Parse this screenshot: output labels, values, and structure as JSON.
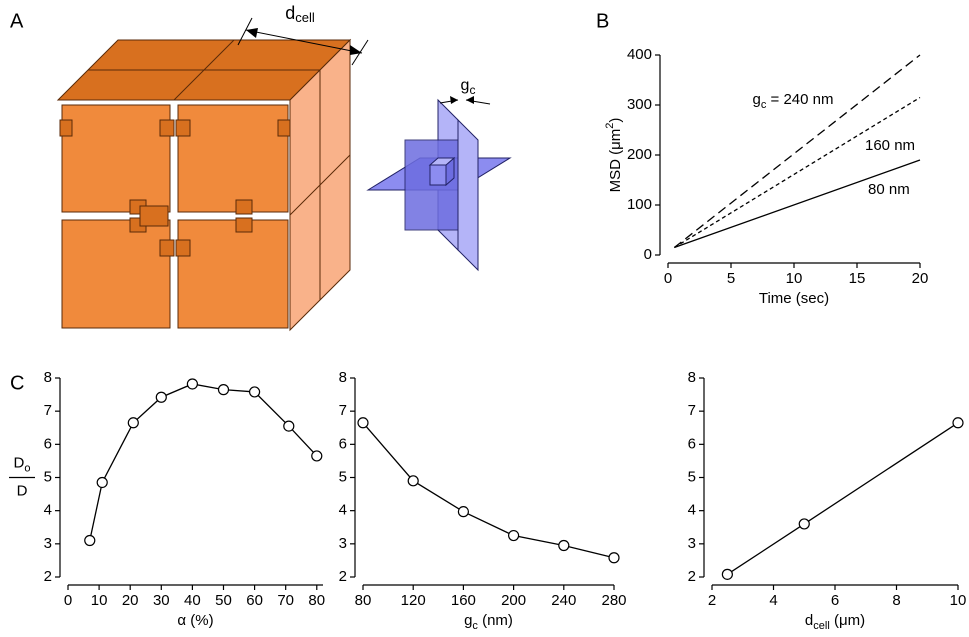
{
  "panel_labels": [
    "A",
    "B",
    "C"
  ],
  "diagram": {
    "cell_label": {
      "text": "d",
      "sub": "cell"
    },
    "gap_label": {
      "text": "g",
      "sub": "c"
    }
  },
  "chart_data": [
    {
      "type": "line",
      "x": [
        0.5,
        20
      ],
      "xlim": [
        0,
        20
      ],
      "xticks": [
        0,
        5,
        10,
        15,
        20
      ],
      "ylim": [
        0,
        400
      ],
      "yticks": [
        0,
        100,
        200,
        300,
        400
      ],
      "xlabel": {
        "text": "Time (sec)"
      },
      "ylabel": {
        "text": "MSD (μm",
        "sup": "2",
        "end": ")"
      },
      "label_prefix": {
        "text": "g",
        "sub": "c",
        "end": " = "
      },
      "series": [
        {
          "name": "240 nm",
          "color": "#000000",
          "dash": "9 5",
          "values": [
            15,
            400
          ]
        },
        {
          "name": "160 nm",
          "color": "#000000",
          "dash": "4 3",
          "values": [
            15,
            315
          ]
        },
        {
          "name": "80 nm",
          "color": "#000000",
          "dash": "none",
          "values": [
            15,
            190
          ]
        }
      ]
    },
    {
      "type": "line",
      "markers": true,
      "x": [
        7,
        11,
        21,
        30,
        40,
        50,
        60,
        71,
        80
      ],
      "values": [
        3.1,
        4.85,
        6.65,
        7.42,
        7.82,
        7.65,
        7.58,
        6.55,
        5.65
      ],
      "color": "#000000",
      "xlim": [
        0,
        82
      ],
      "xticks": [
        0,
        10,
        20,
        30,
        40,
        50,
        60,
        70,
        80
      ],
      "ylim": [
        2,
        8
      ],
      "yticks": [
        2,
        3,
        4,
        5,
        6,
        7,
        8
      ],
      "xlabel": {
        "text": "α (%)"
      },
      "ylabel": {
        "text": "D",
        "sub": "o",
        "denominator": "D"
      }
    },
    {
      "type": "line",
      "markers": true,
      "x": [
        80,
        120,
        160,
        200,
        240,
        280
      ],
      "values": [
        6.65,
        4.9,
        3.97,
        3.25,
        2.95,
        2.58
      ],
      "color": "#000000",
      "xlim": [
        80,
        280
      ],
      "xticks": [
        80,
        120,
        160,
        200,
        240,
        280
      ],
      "ylim": [
        2,
        8
      ],
      "yticks": [
        2,
        3,
        4,
        5,
        6,
        7,
        8
      ],
      "xlabel": {
        "text": "g",
        "sub": "c",
        "end": " (nm)"
      }
    },
    {
      "type": "line",
      "markers": true,
      "x": [
        2.5,
        5,
        10
      ],
      "values": [
        2.08,
        3.6,
        6.65
      ],
      "color": "#000000",
      "xlim": [
        2,
        10
      ],
      "xticks": [
        2,
        4,
        6,
        8,
        10
      ],
      "ylim": [
        2,
        8
      ],
      "yticks": [
        2,
        3,
        4,
        5,
        6,
        7,
        8
      ],
      "xlabel": {
        "text": "d",
        "sub": "cell",
        "end": " (μm)"
      }
    }
  ]
}
